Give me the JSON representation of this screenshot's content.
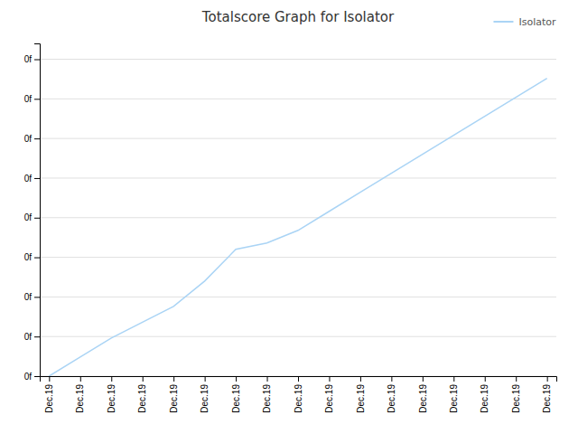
{
  "chart_data": {
    "type": "line",
    "title": "Totalscore Graph for Isolator",
    "x": [
      0,
      1,
      2,
      3,
      4,
      5,
      6,
      7,
      8,
      9,
      10,
      11,
      12,
      13,
      14,
      15,
      16
    ],
    "series": [
      {
        "name": "Isolator",
        "color": "#aad4f5",
        "values": [
          0,
          0.06,
          0.12,
          0.17,
          0.22,
          0.3,
          0.4,
          0.42,
          0.46,
          0.52,
          0.58,
          0.64,
          0.7,
          0.76,
          0.82,
          0.88,
          0.94
        ]
      }
    ],
    "xlim": [
      -0.3,
      16.3
    ],
    "xticks": [
      {
        "value": 0,
        "label": "Dec.19"
      },
      {
        "value": 1,
        "label": "Dec.19"
      },
      {
        "value": 2,
        "label": "Dec.19"
      },
      {
        "value": 3,
        "label": "Dec.19"
      },
      {
        "value": 4,
        "label": "Dec.19"
      },
      {
        "value": 5,
        "label": "Dec.19"
      },
      {
        "value": 6,
        "label": "Dec.19"
      },
      {
        "value": 7,
        "label": "Dec.19"
      },
      {
        "value": 8,
        "label": "Dec.19"
      },
      {
        "value": 9,
        "label": "Dec.19"
      },
      {
        "value": 10,
        "label": "Dec.19"
      },
      {
        "value": 11,
        "label": "Dec.19"
      },
      {
        "value": 12,
        "label": "Dec.19"
      },
      {
        "value": 13,
        "label": "Dec.19"
      },
      {
        "value": 14,
        "label": "Dec.19"
      },
      {
        "value": 15,
        "label": "Dec.19"
      },
      {
        "value": 16,
        "label": "Dec.19"
      }
    ],
    "ylim": [
      0,
      1.05
    ],
    "yticks": [
      {
        "value": 0,
        "label": "0f"
      },
      {
        "value": 0.125,
        "label": "0f"
      },
      {
        "value": 0.25,
        "label": "0f"
      },
      {
        "value": 0.375,
        "label": "0f"
      },
      {
        "value": 0.5,
        "label": "0f"
      },
      {
        "value": 0.625,
        "label": "0f"
      },
      {
        "value": 0.75,
        "label": "0f"
      },
      {
        "value": 0.875,
        "label": "0f"
      },
      {
        "value": 1.0,
        "label": "0f"
      }
    ],
    "grid": true,
    "legend": "upper right"
  }
}
